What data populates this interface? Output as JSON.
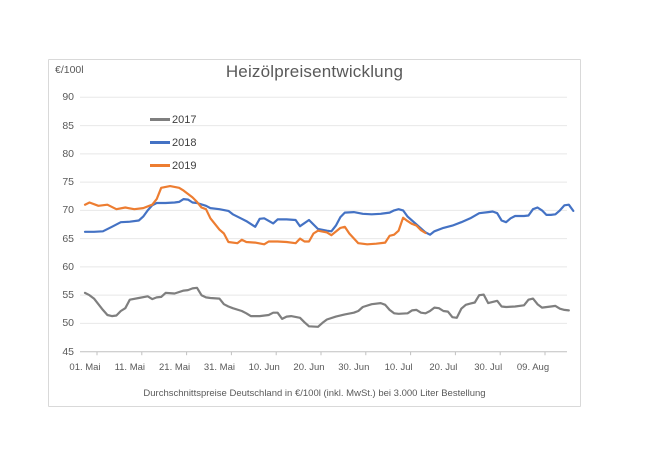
{
  "title": "Heizölpreisentwicklung",
  "y_axis_unit": "€/100l",
  "caption": "Durchschnittspreise Deutschland in €/100l (inkl. MwSt.) bei 3.000 Liter Bestellung",
  "colors": {
    "grid": "#e8e8e8",
    "axis": "#c0c0c0",
    "text": "#595959",
    "legend_text": "#404040",
    "series_2017": "#7f7f7f",
    "series_2018": "#4472c4",
    "series_2019": "#ed7d31"
  },
  "chart_data": {
    "type": "line",
    "title": "Heizölpreisentwicklung",
    "ylabel": "€/100l",
    "xlabel": "",
    "ylim": [
      45,
      90
    ],
    "y_ticks": [
      90,
      85,
      80,
      75,
      70,
      65,
      60,
      55,
      50,
      45
    ],
    "grid": true,
    "legend_position": "upper-left-inside",
    "x_unit": "days since 01. Mai",
    "x_range_days": [
      0,
      109
    ],
    "x_tick_days": [
      0,
      10,
      20,
      30,
      40,
      50,
      60,
      70,
      80,
      90,
      100
    ],
    "x_tick_labels": [
      "01. Mai",
      "11. Mai",
      "21. Mai",
      "31. Mai",
      "10. Jun",
      "20. Jun",
      "30. Jun",
      "10. Jul",
      "20. Jul",
      "30. Jul",
      "09. Aug"
    ],
    "caption": "Durchschnittspreise Deutschland in €/100l (inkl. MwSt.) bei 3.000 Liter Bestellung",
    "series": [
      {
        "name": "2017",
        "color": "#7f7f7f",
        "points": [
          [
            0,
            55.4
          ],
          [
            1,
            55.0
          ],
          [
            2,
            54.4
          ],
          [
            3,
            53.4
          ],
          [
            4,
            52.4
          ],
          [
            5,
            51.5
          ],
          [
            6,
            51.3
          ],
          [
            7,
            51.4
          ],
          [
            8,
            52.2
          ],
          [
            9,
            52.7
          ],
          [
            10,
            54.2
          ],
          [
            12,
            54.5
          ],
          [
            14,
            54.8
          ],
          [
            15,
            54.3
          ],
          [
            16,
            54.6
          ],
          [
            17,
            54.7
          ],
          [
            18,
            55.4
          ],
          [
            20,
            55.3
          ],
          [
            22,
            55.8
          ],
          [
            23,
            55.9
          ],
          [
            24,
            56.2
          ],
          [
            25,
            56.3
          ],
          [
            26,
            55.0
          ],
          [
            27,
            54.6
          ],
          [
            28,
            54.5
          ],
          [
            30,
            54.4
          ],
          [
            31,
            53.4
          ],
          [
            32,
            53.0
          ],
          [
            33,
            52.7
          ],
          [
            35,
            52.2
          ],
          [
            36,
            51.8
          ],
          [
            37,
            51.3
          ],
          [
            39,
            51.3
          ],
          [
            41,
            51.5
          ],
          [
            42,
            51.9
          ],
          [
            43,
            51.9
          ],
          [
            44,
            50.8
          ],
          [
            45,
            51.2
          ],
          [
            46,
            51.3
          ],
          [
            48,
            51.0
          ],
          [
            49,
            50.2
          ],
          [
            50,
            49.5
          ],
          [
            52,
            49.4
          ],
          [
            53,
            50.1
          ],
          [
            54,
            50.7
          ],
          [
            56,
            51.2
          ],
          [
            58,
            51.6
          ],
          [
            60,
            51.9
          ],
          [
            61,
            52.2
          ],
          [
            62,
            52.9
          ],
          [
            64,
            53.4
          ],
          [
            66,
            53.6
          ],
          [
            67,
            53.3
          ],
          [
            68,
            52.4
          ],
          [
            69,
            51.8
          ],
          [
            70,
            51.7
          ],
          [
            72,
            51.8
          ],
          [
            73,
            52.3
          ],
          [
            74,
            52.4
          ],
          [
            75,
            51.9
          ],
          [
            76,
            51.8
          ],
          [
            77,
            52.2
          ],
          [
            78,
            52.8
          ],
          [
            79,
            52.7
          ],
          [
            80,
            52.2
          ],
          [
            81,
            52.1
          ],
          [
            82,
            51.1
          ],
          [
            83,
            51.0
          ],
          [
            84,
            52.6
          ],
          [
            85,
            53.3
          ],
          [
            86,
            53.5
          ],
          [
            87,
            53.7
          ],
          [
            88,
            55.0
          ],
          [
            89,
            55.1
          ],
          [
            90,
            53.6
          ],
          [
            91,
            53.8
          ],
          [
            92,
            54.0
          ],
          [
            93,
            53.0
          ],
          [
            94,
            52.9
          ],
          [
            96,
            53.0
          ],
          [
            98,
            53.2
          ],
          [
            99,
            54.2
          ],
          [
            100,
            54.4
          ],
          [
            101,
            53.4
          ],
          [
            102,
            52.8
          ],
          [
            104,
            53.0
          ],
          [
            105,
            53.1
          ],
          [
            106,
            52.6
          ],
          [
            107,
            52.4
          ],
          [
            108,
            52.3
          ]
        ]
      },
      {
        "name": "2018",
        "color": "#4472c4",
        "points": [
          [
            0,
            66.2
          ],
          [
            2,
            66.2
          ],
          [
            4,
            66.3
          ],
          [
            6,
            67.1
          ],
          [
            8,
            67.9
          ],
          [
            10,
            68.0
          ],
          [
            12,
            68.2
          ],
          [
            13,
            68.9
          ],
          [
            14,
            70.0
          ],
          [
            15,
            70.9
          ],
          [
            16,
            71.3
          ],
          [
            18,
            71.3
          ],
          [
            20,
            71.4
          ],
          [
            21,
            71.5
          ],
          [
            22,
            72.0
          ],
          [
            23,
            71.9
          ],
          [
            24,
            71.4
          ],
          [
            25,
            71.3
          ],
          [
            27,
            70.8
          ],
          [
            28,
            70.4
          ],
          [
            30,
            70.2
          ],
          [
            32,
            69.9
          ],
          [
            33,
            69.3
          ],
          [
            35,
            68.5
          ],
          [
            36,
            68.1
          ],
          [
            38,
            67.1
          ],
          [
            39,
            68.5
          ],
          [
            40,
            68.6
          ],
          [
            42,
            67.7
          ],
          [
            43,
            68.4
          ],
          [
            45,
            68.4
          ],
          [
            47,
            68.3
          ],
          [
            48,
            67.2
          ],
          [
            50,
            68.3
          ],
          [
            51,
            67.5
          ],
          [
            52,
            66.7
          ],
          [
            54,
            66.4
          ],
          [
            55,
            66.3
          ],
          [
            56,
            67.3
          ],
          [
            57,
            68.8
          ],
          [
            58,
            69.6
          ],
          [
            60,
            69.7
          ],
          [
            62,
            69.4
          ],
          [
            64,
            69.3
          ],
          [
            66,
            69.4
          ],
          [
            68,
            69.6
          ],
          [
            69,
            70.0
          ],
          [
            70,
            70.2
          ],
          [
            71,
            70.0
          ],
          [
            72,
            68.9
          ],
          [
            74,
            67.5
          ],
          [
            75,
            66.8
          ],
          [
            76,
            66.1
          ],
          [
            77,
            65.7
          ],
          [
            78,
            66.3
          ],
          [
            80,
            66.9
          ],
          [
            82,
            67.3
          ],
          [
            84,
            67.9
          ],
          [
            86,
            68.6
          ],
          [
            88,
            69.5
          ],
          [
            90,
            69.7
          ],
          [
            91,
            69.8
          ],
          [
            92,
            69.5
          ],
          [
            93,
            68.2
          ],
          [
            94,
            67.9
          ],
          [
            95,
            68.6
          ],
          [
            96,
            69.0
          ],
          [
            98,
            69.0
          ],
          [
            99,
            69.1
          ],
          [
            100,
            70.2
          ],
          [
            101,
            70.5
          ],
          [
            102,
            70.0
          ],
          [
            103,
            69.2
          ],
          [
            104,
            69.2
          ],
          [
            105,
            69.3
          ],
          [
            106,
            70.0
          ],
          [
            107,
            70.9
          ],
          [
            108,
            71.0
          ],
          [
            109,
            69.9
          ]
        ]
      },
      {
        "name": "2019",
        "color": "#ed7d31",
        "points": [
          [
            0,
            71.0
          ],
          [
            1,
            71.4
          ],
          [
            3,
            70.8
          ],
          [
            5,
            71.0
          ],
          [
            7,
            70.2
          ],
          [
            9,
            70.5
          ],
          [
            11,
            70.2
          ],
          [
            13,
            70.4
          ],
          [
            15,
            71.0
          ],
          [
            16,
            72.0
          ],
          [
            17,
            74.0
          ],
          [
            19,
            74.3
          ],
          [
            21,
            74.0
          ],
          [
            22,
            73.5
          ],
          [
            24,
            72.3
          ],
          [
            25,
            71.5
          ],
          [
            26,
            70.5
          ],
          [
            27,
            70.2
          ],
          [
            28,
            68.6
          ],
          [
            30,
            66.6
          ],
          [
            31,
            65.9
          ],
          [
            32,
            64.4
          ],
          [
            34,
            64.2
          ],
          [
            35,
            64.8
          ],
          [
            36,
            64.4
          ],
          [
            38,
            64.3
          ],
          [
            40,
            64.0
          ],
          [
            41,
            64.5
          ],
          [
            43,
            64.5
          ],
          [
            45,
            64.4
          ],
          [
            47,
            64.2
          ],
          [
            48,
            65.0
          ],
          [
            49,
            64.5
          ],
          [
            50,
            64.5
          ],
          [
            51,
            65.9
          ],
          [
            52,
            66.4
          ],
          [
            54,
            66.1
          ],
          [
            55,
            65.6
          ],
          [
            57,
            66.9
          ],
          [
            58,
            67.1
          ],
          [
            59,
            65.9
          ],
          [
            61,
            64.2
          ],
          [
            63,
            64.0
          ],
          [
            65,
            64.1
          ],
          [
            67,
            64.3
          ],
          [
            68,
            65.5
          ],
          [
            69,
            65.7
          ],
          [
            70,
            66.4
          ],
          [
            71,
            68.7
          ],
          [
            72,
            68.1
          ],
          [
            73,
            67.6
          ],
          [
            74,
            67.3
          ],
          [
            75,
            66.5
          ],
          [
            76,
            66.0
          ]
        ]
      }
    ]
  },
  "legend": {
    "items": [
      {
        "label": "2017",
        "color": "#7f7f7f"
      },
      {
        "label": "2018",
        "color": "#4472c4"
      },
      {
        "label": "2019",
        "color": "#ed7d31"
      }
    ]
  }
}
